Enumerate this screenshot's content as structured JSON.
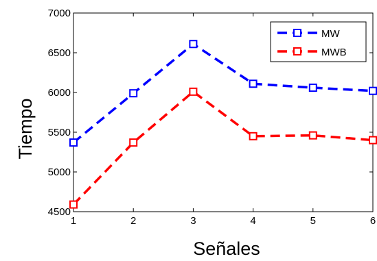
{
  "chart_data": {
    "type": "line",
    "xlabel": "Señales",
    "ylabel": "Tiempo",
    "x": [
      1,
      2,
      3,
      4,
      5,
      6
    ],
    "xlim": [
      1,
      6
    ],
    "ylim": [
      4500,
      7000
    ],
    "xticks": [
      1,
      2,
      3,
      4,
      5,
      6
    ],
    "yticks": [
      4500,
      5000,
      5500,
      6000,
      6500,
      7000
    ],
    "grid": false,
    "legend_position": "top-right",
    "series": [
      {
        "name": "MW",
        "color": "#0000ff",
        "marker": "square",
        "linestyle": "dashed",
        "values": [
          5370,
          5990,
          6610,
          6110,
          6060,
          6020
        ]
      },
      {
        "name": "MWB",
        "color": "#ff0000",
        "marker": "square",
        "linestyle": "dashed",
        "values": [
          4590,
          5370,
          6010,
          5450,
          5460,
          5400
        ]
      }
    ]
  }
}
